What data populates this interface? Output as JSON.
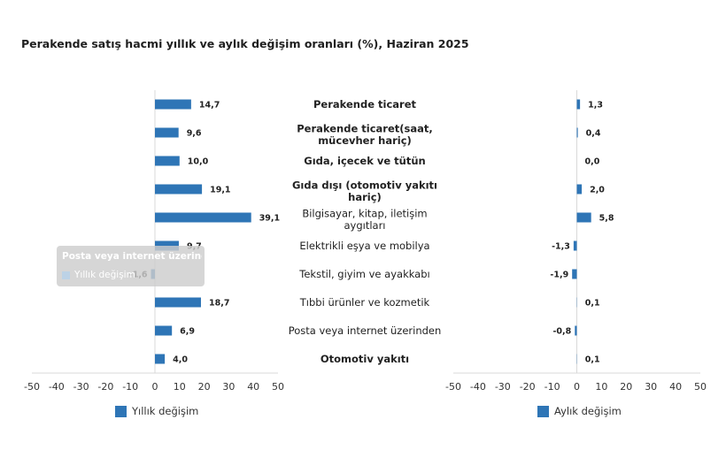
{
  "title": "Perakende satış hacmi yıllık ve aylık değişim oranları (%), Haziran 2025",
  "colors": {
    "bar": "#2e75b6",
    "axis": "#d9d9d9"
  },
  "chart_data": {
    "type": "bar",
    "orientation": "horizontal",
    "categories": [
      [
        "Perakende ticaret"
      ],
      [
        "Perakende ticaret(saat,",
        "mücevher hariç)"
      ],
      [
        "Gıda, içecek ve tütün"
      ],
      [
        "Gıda dışı (otomotiv yakıtı",
        "hariç)"
      ],
      [
        "Bilgisayar, kitap, iletişim",
        "aygıtları"
      ],
      [
        "Elektrikli eşya ve mobilya"
      ],
      [
        "Tekstil, giyim ve ayakkabı"
      ],
      [
        "Tıbbi ürünler ve kozmetik"
      ],
      [
        "Posta veya internet üzerinden"
      ],
      [
        "Otomotiv yakıtı"
      ]
    ],
    "bold_categories": [
      0,
      1,
      2,
      3,
      9
    ],
    "series": [
      {
        "name": "Yıllık değişim",
        "values": [
          14.7,
          9.6,
          10.0,
          19.1,
          39.1,
          9.7,
          -1.6,
          18.7,
          6.9,
          4.0
        ],
        "labels": [
          "14,7",
          "9,6",
          "10,0",
          "19,1",
          "39,1",
          "9,7",
          "-1,6",
          "18,7",
          "6,9",
          "4,0"
        ]
      },
      {
        "name": "Aylık değişim",
        "values": [
          1.3,
          0.4,
          0.0,
          2.0,
          5.8,
          -1.3,
          -1.9,
          0.1,
          -0.8,
          0.1
        ],
        "labels": [
          "1,3",
          "0,4",
          "0,0",
          "2,0",
          "5,8",
          "-1,3",
          "-1,9",
          "0,1",
          "-0,8",
          "0,1"
        ]
      }
    ],
    "xlim": [
      -50,
      50
    ],
    "xticks": [
      "-50",
      "-40",
      "-30",
      "-20",
      "-10",
      "0",
      "10",
      "20",
      "30",
      "40",
      "50"
    ],
    "tick_values": [
      -50,
      -40,
      -30,
      -20,
      -10,
      0,
      10,
      20,
      30,
      40,
      50
    ]
  },
  "legend": {
    "left": "Yıllık değişim",
    "right": "Aylık değişim"
  },
  "tooltip": {
    "title": "Posta veya internet üzerinden",
    "series": "Yıllık değişim"
  }
}
